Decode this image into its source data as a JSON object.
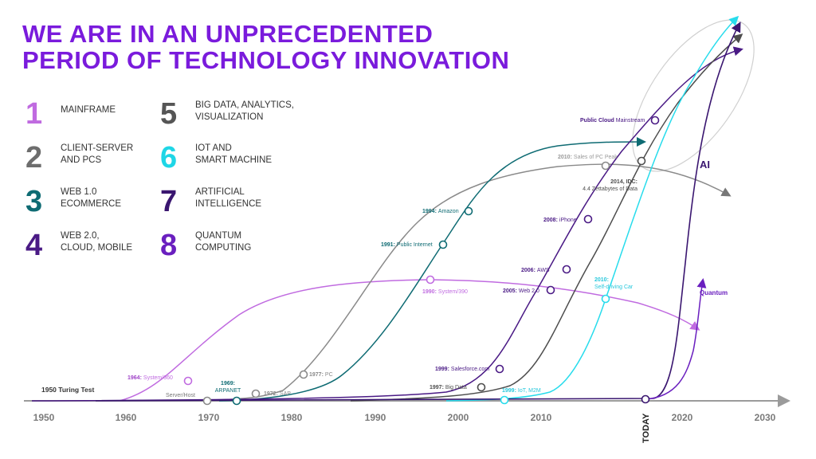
{
  "title": {
    "line1": "WE ARE IN AN UNPRECEDENTED",
    "line2": "PERIOD OF TECHNOLOGY INNOVATION"
  },
  "legend": [
    {
      "num": "1",
      "line1": "MAINFRAME",
      "line2": "",
      "color": "#c06be0"
    },
    {
      "num": "2",
      "line1": "CLIENT-SERVER",
      "line2": "AND PCS",
      "color": "#6d6d6d"
    },
    {
      "num": "3",
      "line1": "WEB 1.0",
      "line2": "ECOMMERCE",
      "color": "#0e6b73"
    },
    {
      "num": "4",
      "line1": "WEB 2.0,",
      "line2": "CLOUD, MOBILE",
      "color": "#4a1a85"
    },
    {
      "num": "5",
      "line1": "BIG DATA, ANALYTICS,",
      "line2": "VISUALIZATION",
      "color": "#555555"
    },
    {
      "num": "6",
      "line1": "IOT AND",
      "line2": "SMART MACHINE",
      "color": "#1fd6e6"
    },
    {
      "num": "7",
      "line1": "ARTIFICIAL",
      "line2": "INTELLIGENCE",
      "color": "#3a1670"
    },
    {
      "num": "8",
      "line1": "QUANTUM",
      "line2": "COMPUTING",
      "color": "#6a1fbf"
    }
  ],
  "axis": {
    "ticks": [
      "1950",
      "1960",
      "1970",
      "1980",
      "1990",
      "2000",
      "2010",
      "2020",
      "2030"
    ],
    "today_label": "TODAY"
  },
  "milestones": {
    "turing": "1950 Turing Test",
    "system360": {
      "year": "1964:",
      "text": "System/360"
    },
    "server_host": "Server/Host",
    "arpanet": {
      "year": "1969:",
      "text": "ARPANET"
    },
    "sap": {
      "year": "1972:",
      "text": "SAP"
    },
    "pc": {
      "year": "1977:",
      "text": "PC"
    },
    "system390": {
      "year": "1990:",
      "text": "System/390"
    },
    "public_internet": {
      "year": "1991:",
      "text": "Public Internet"
    },
    "amazon": {
      "year": "1994:",
      "text": "Amazon"
    },
    "salesforce": {
      "year": "1999:",
      "text": "Salesforce.com"
    },
    "big_data": {
      "year": "1997:",
      "text": "Big Data"
    },
    "iot_m2m": {
      "year": "1999:",
      "text": "IoT, M2M"
    },
    "web2": {
      "year": "2005:",
      "text": "Web 2.0"
    },
    "aws": {
      "year": "2006:",
      "text": "AWS"
    },
    "iphone": {
      "year": "2008:",
      "text": "iPhone"
    },
    "pc_peak": {
      "year": "2010:",
      "text": "Sales of PC Peak"
    },
    "idc": {
      "year": "2014, IDC:",
      "text": "4.4 Zettabytes of Data"
    },
    "self_driving": {
      "year": "2010:",
      "text": "Self-driving Car"
    },
    "public_cloud": {
      "year": "Public Cloud",
      "text": "Mainstream"
    },
    "ai": "AI",
    "quantum": "Quantum"
  },
  "colors": {
    "title": "#7a1bdc",
    "mainframe": "#c06be0",
    "client_server": "#8a8a8a",
    "web1": "#0e6b73",
    "web2": "#4a1a85",
    "big_data": "#4d4d4d",
    "iot": "#27dcec",
    "ai": "#3a1670",
    "quantum": "#6a1fbf",
    "axis": "#9b9b9b"
  }
}
